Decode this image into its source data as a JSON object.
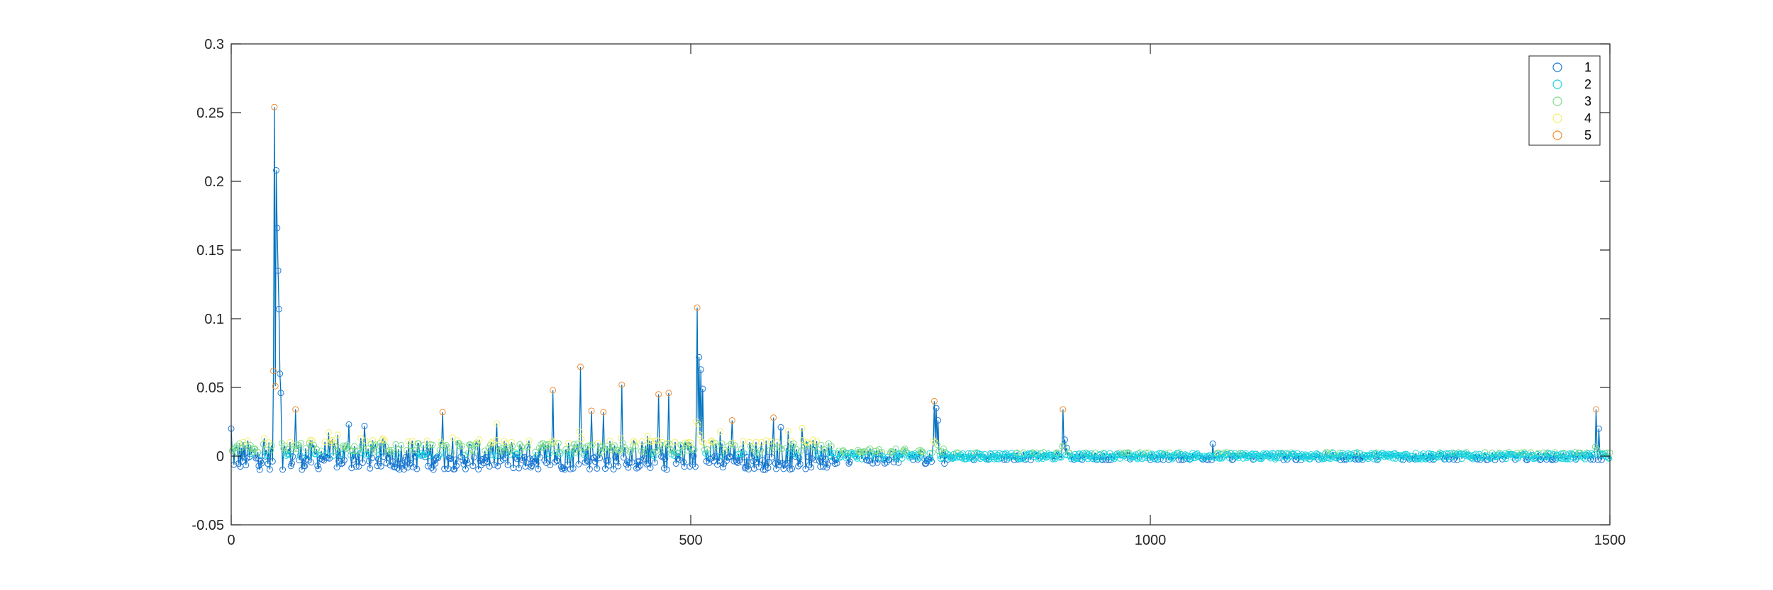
{
  "chart_data": {
    "type": "line",
    "title": "",
    "xlabel": "",
    "ylabel": "",
    "xlim": [
      0,
      1500
    ],
    "ylim": [
      -0.05,
      0.3
    ],
    "xticks": [
      0,
      500,
      1000,
      1500
    ],
    "xtick_labels": [
      "0",
      "500",
      "1000",
      "1500"
    ],
    "yticks": [
      -0.05,
      0,
      0.05,
      0.1,
      0.15,
      0.2,
      0.25,
      0.3
    ],
    "ytick_labels": [
      "-0.05",
      "0",
      "0.05",
      "0.1",
      "0.15",
      "0.2",
      "0.25",
      "0.3"
    ],
    "grid": false,
    "legend_position": "top-right",
    "line_color": "#0072BD",
    "marker": "open-circle",
    "series": [
      {
        "name": "1",
        "color": "#1f78d6"
      },
      {
        "name": "2",
        "color": "#17d4e0"
      },
      {
        "name": "3",
        "color": "#7ddc8a"
      },
      {
        "name": "4",
        "color": "#f2ef6a"
      },
      {
        "name": "5",
        "color": "#f08a2e"
      }
    ],
    "peaks": [
      {
        "x": 0,
        "y": 0.02
      },
      {
        "x": 47,
        "y": 0.254
      },
      {
        "x": 49,
        "y": 0.208
      },
      {
        "x": 50,
        "y": 0.166
      },
      {
        "x": 51,
        "y": 0.135
      },
      {
        "x": 52,
        "y": 0.107
      },
      {
        "x": 53,
        "y": 0.06
      },
      {
        "x": 54,
        "y": 0.046
      },
      {
        "x": 70,
        "y": 0.034
      },
      {
        "x": 128,
        "y": 0.023
      },
      {
        "x": 145,
        "y": 0.022
      },
      {
        "x": 230,
        "y": 0.032
      },
      {
        "x": 350,
        "y": 0.048
      },
      {
        "x": 380,
        "y": 0.065
      },
      {
        "x": 392,
        "y": 0.033
      },
      {
        "x": 405,
        "y": 0.032
      },
      {
        "x": 425,
        "y": 0.052
      },
      {
        "x": 465,
        "y": 0.045
      },
      {
        "x": 476,
        "y": 0.046
      },
      {
        "x": 507,
        "y": 0.108
      },
      {
        "x": 509,
        "y": 0.072
      },
      {
        "x": 511,
        "y": 0.063
      },
      {
        "x": 513,
        "y": 0.049
      },
      {
        "x": 545,
        "y": 0.026
      },
      {
        "x": 590,
        "y": 0.028
      },
      {
        "x": 598,
        "y": 0.021
      },
      {
        "x": 765,
        "y": 0.04
      },
      {
        "x": 767,
        "y": 0.035
      },
      {
        "x": 769,
        "y": 0.026
      },
      {
        "x": 905,
        "y": 0.034
      },
      {
        "x": 907,
        "y": 0.012
      },
      {
        "x": 909,
        "y": 0.006
      },
      {
        "x": 1068,
        "y": 0.009
      },
      {
        "x": 1485,
        "y": 0.034
      },
      {
        "x": 1488,
        "y": 0.02
      }
    ]
  }
}
